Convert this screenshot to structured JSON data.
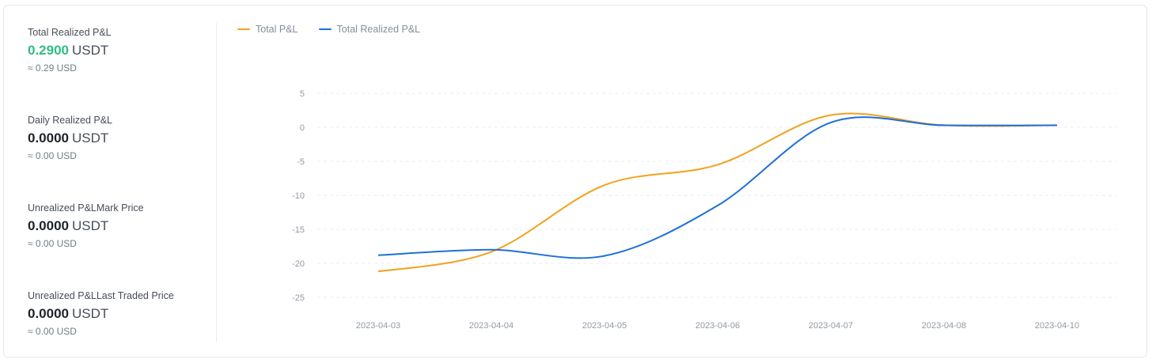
{
  "stats": [
    {
      "label": "Total Realized P&L",
      "value": "0.2900",
      "unit": "USDT",
      "approx": "≈ 0.29 USD",
      "positive": true
    },
    {
      "label": "Daily Realized P&L",
      "value": "0.0000",
      "unit": "USDT",
      "approx": "≈ 0.00 USD",
      "positive": false
    },
    {
      "label": "Unrealized P&LMark Price",
      "value": "0.0000",
      "unit": "USDT",
      "approx": "≈ 0.00 USD",
      "positive": false
    },
    {
      "label": "Unrealized P&LLast Traded Price",
      "value": "0.0000",
      "unit": "USDT",
      "approx": "≈ 0.00 USD",
      "positive": false
    }
  ],
  "colors": {
    "total": "#f0a31e",
    "realized": "#1e6fd9",
    "positive": "#2ebd85"
  },
  "chart_data": {
    "type": "line",
    "categories": [
      "2023-04-03",
      "2023-04-04",
      "2023-04-05",
      "2023-04-06",
      "2023-04-07",
      "2023-04-08",
      "2023-04-10"
    ],
    "ylim": [
      -25,
      5
    ],
    "yticks": [
      5,
      0,
      -5,
      -10,
      -15,
      -20,
      -25
    ],
    "grid": true,
    "legend_position": "top-left",
    "series": [
      {
        "name": "Total P&L",
        "color": "#f0a31e",
        "values": [
          -21.2,
          -18.3,
          -8.5,
          -5.5,
          1.8,
          0.3,
          0.3
        ]
      },
      {
        "name": "Total Realized P&L",
        "color": "#1e6fd9",
        "values": [
          -18.8,
          -18.0,
          -18.9,
          -11.5,
          0.7,
          0.3,
          0.3
        ]
      }
    ]
  }
}
